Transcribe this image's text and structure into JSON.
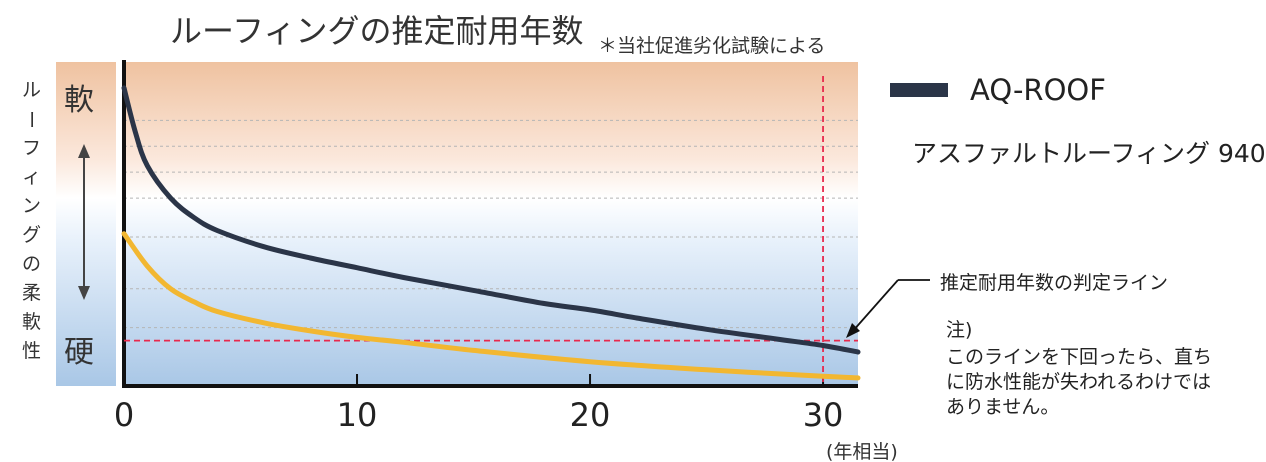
{
  "chart_data": {
    "type": "line",
    "title": "ルーフィングの推定耐用年数",
    "subtitle": "＊当社促進劣化試験による",
    "ylabel": "ルーフィングの柔軟性",
    "y_top_label": "軟",
    "y_bottom_label": "硬",
    "xlabel": "(年相当)",
    "xlim": [
      0,
      31.5
    ],
    "ylim": [
      0,
      10
    ],
    "x_ticks": [
      0,
      10,
      20,
      30
    ],
    "x_tick_labels": [
      "0",
      "10",
      "20",
      "30"
    ],
    "grid": true,
    "legend_position": "right",
    "series": [
      {
        "name": "AQ-ROOF",
        "color": "#2b3548",
        "x": [
          0,
          0.5,
          1,
          2,
          3,
          4,
          6,
          8,
          10,
          12,
          15,
          18,
          20,
          22,
          25,
          28,
          30,
          31.5
        ],
        "y": [
          9.2,
          7.8,
          6.8,
          5.8,
          5.2,
          4.8,
          4.3,
          3.95,
          3.65,
          3.35,
          2.95,
          2.55,
          2.35,
          2.1,
          1.75,
          1.45,
          1.25,
          1.05
        ]
      },
      {
        "name": "アスファルトルーフィング 940",
        "color": "#f2b731",
        "x": [
          0,
          1,
          2,
          3,
          4,
          6,
          8,
          10,
          12,
          15,
          20,
          25,
          30,
          31.5
        ],
        "y": [
          4.7,
          3.7,
          3.0,
          2.6,
          2.3,
          1.95,
          1.7,
          1.5,
          1.35,
          1.1,
          0.75,
          0.5,
          0.3,
          0.25
        ]
      }
    ],
    "annotations": {
      "judgement_line_y": 1.4,
      "judgement_line_x": 30,
      "judgement_label": "推定耐用年数の判定ライン",
      "note_title": "注)",
      "note_text": "このラインを下回ったら、直ちに防水性能が失われるわけではありません。",
      "judgement_color": "#e8294c"
    }
  }
}
